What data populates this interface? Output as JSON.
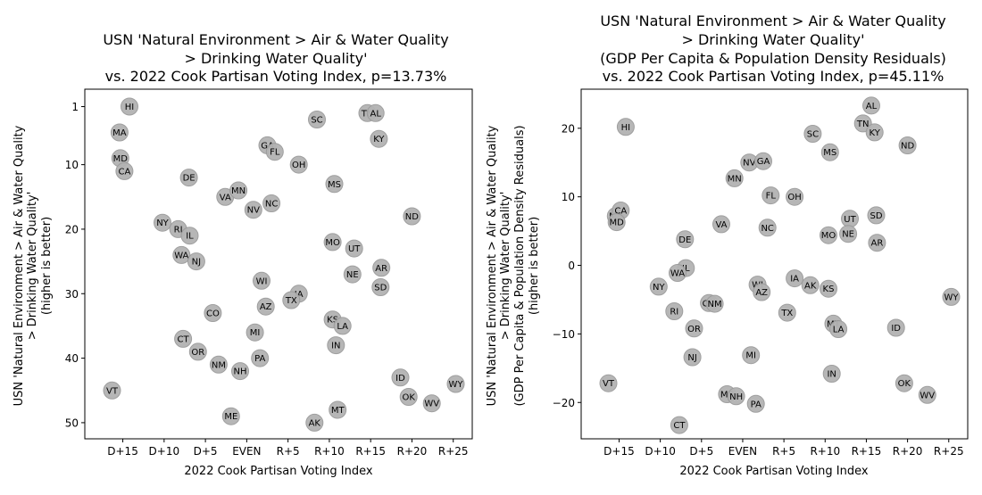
{
  "chart_data": [
    {
      "type": "scatter",
      "title_lines": [
        "USN 'Natural Environment > Air & Water Quality",
        "> Drinking Water Quality'",
        "vs. 2022 Cook Partisan Voting Index, p=13.73%"
      ],
      "xlabel": "2022 Cook Partisan Voting Index",
      "ylabel_lines": [
        "USN 'Natural Environment > Air & Water Quality",
        "> Drinking Water Quality'",
        "(higher is better)"
      ],
      "xlim": [
        -19.6,
        27.3
      ],
      "ylim": [
        52.5,
        -1.7
      ],
      "y_inverted": true,
      "xticks": [
        {
          "v": -15,
          "label": "D+15"
        },
        {
          "v": -10,
          "label": "D+10"
        },
        {
          "v": -5,
          "label": "D+5"
        },
        {
          "v": 0,
          "label": "EVEN"
        },
        {
          "v": 5,
          "label": "R+5"
        },
        {
          "v": 10,
          "label": "R+10"
        },
        {
          "v": 15,
          "label": "R+15"
        },
        {
          "v": 20,
          "label": "R+20"
        },
        {
          "v": 25,
          "label": "R+25"
        }
      ],
      "yticks": [
        {
          "v": 1,
          "label": "1"
        },
        {
          "v": 10,
          "label": "10"
        },
        {
          "v": 20,
          "label": "20"
        },
        {
          "v": 30,
          "label": "30"
        },
        {
          "v": 40,
          "label": "40"
        },
        {
          "v": 50,
          "label": "50"
        }
      ],
      "points": [
        {
          "label": "HI",
          "x": -14.2,
          "y": 1
        },
        {
          "label": "MA",
          "x": -15.4,
          "y": 5
        },
        {
          "label": "MD",
          "x": -15.3,
          "y": 9
        },
        {
          "label": "CA",
          "x": -14.8,
          "y": 11
        },
        {
          "label": "DE",
          "x": -7.0,
          "y": 12
        },
        {
          "label": "VA",
          "x": -2.6,
          "y": 15
        },
        {
          "label": "MN",
          "x": -1.0,
          "y": 14
        },
        {
          "label": "NV",
          "x": 0.8,
          "y": 17
        },
        {
          "label": "NC",
          "x": 3.0,
          "y": 16
        },
        {
          "label": "NY",
          "x": -10.2,
          "y": 19
        },
        {
          "label": "RI",
          "x": -8.3,
          "y": 20
        },
        {
          "label": "IL",
          "x": -6.9,
          "y": 21
        },
        {
          "label": "WA",
          "x": -7.9,
          "y": 24
        },
        {
          "label": "NJ",
          "x": -6.1,
          "y": 25
        },
        {
          "label": "GA",
          "x": 2.5,
          "y": 7
        },
        {
          "label": "FL",
          "x": 3.4,
          "y": 8
        },
        {
          "label": "OH",
          "x": 6.3,
          "y": 10
        },
        {
          "label": "SC",
          "x": 8.5,
          "y": 3
        },
        {
          "label": "MS",
          "x": 10.6,
          "y": 13
        },
        {
          "label": "TN",
          "x": 14.6,
          "y": 2
        },
        {
          "label": "AL",
          "x": 15.6,
          "y": 2
        },
        {
          "label": "KY",
          "x": 16.0,
          "y": 6
        },
        {
          "label": "ND",
          "x": 20.0,
          "y": 18
        },
        {
          "label": "MO",
          "x": 10.4,
          "y": 22
        },
        {
          "label": "UT",
          "x": 13.0,
          "y": 23
        },
        {
          "label": "AR",
          "x": 16.3,
          "y": 26
        },
        {
          "label": "NE",
          "x": 12.8,
          "y": 27
        },
        {
          "label": "SD",
          "x": 16.2,
          "y": 29
        },
        {
          "label": "WI",
          "x": 1.8,
          "y": 28
        },
        {
          "label": "IA",
          "x": 6.3,
          "y": 30
        },
        {
          "label": "TX",
          "x": 5.4,
          "y": 31
        },
        {
          "label": "AZ",
          "x": 2.3,
          "y": 32
        },
        {
          "label": "CO",
          "x": -4.1,
          "y": 33
        },
        {
          "label": "KS",
          "x": 10.4,
          "y": 34
        },
        {
          "label": "LA",
          "x": 11.6,
          "y": 35
        },
        {
          "label": "MI",
          "x": 1.0,
          "y": 36
        },
        {
          "label": "CT",
          "x": -7.7,
          "y": 37
        },
        {
          "label": "IN",
          "x": 10.8,
          "y": 38
        },
        {
          "label": "OR",
          "x": -5.9,
          "y": 39
        },
        {
          "label": "PA",
          "x": 1.6,
          "y": 40
        },
        {
          "label": "NM",
          "x": -3.4,
          "y": 41
        },
        {
          "label": "NH",
          "x": -0.8,
          "y": 42
        },
        {
          "label": "ID",
          "x": 18.6,
          "y": 43
        },
        {
          "label": "VT",
          "x": -16.3,
          "y": 45
        },
        {
          "label": "WY",
          "x": 25.3,
          "y": 44
        },
        {
          "label": "OK",
          "x": 19.6,
          "y": 46
        },
        {
          "label": "WV",
          "x": 22.4,
          "y": 47
        },
        {
          "label": "MT",
          "x": 11.0,
          "y": 48
        },
        {
          "label": "ME",
          "x": -1.9,
          "y": 49
        },
        {
          "label": "AK",
          "x": 8.2,
          "y": 50
        }
      ]
    },
    {
      "type": "scatter",
      "title_lines": [
        "USN 'Natural Environment > Air & Water Quality",
        "> Drinking Water Quality'",
        "(GDP Per Capita & Population Density Residuals)",
        "vs. 2022 Cook Partisan Voting Index, p=45.11%"
      ],
      "xlabel": "2022 Cook Partisan Voting Index",
      "ylabel_lines": [
        "USN 'Natural Environment > Air & Water Quality",
        "> Drinking Water Quality'",
        "(GDP Per Capita & Population Density Residuals)",
        "(higher is better)"
      ],
      "xlim": [
        -19.6,
        27.3
      ],
      "ylim": [
        -25.3,
        25.7
      ],
      "y_inverted": false,
      "xticks": [
        {
          "v": -15,
          "label": "D+15"
        },
        {
          "v": -10,
          "label": "D+10"
        },
        {
          "v": -5,
          "label": "D+5"
        },
        {
          "v": 0,
          "label": "EVEN"
        },
        {
          "v": 5,
          "label": "R+5"
        },
        {
          "v": 10,
          "label": "R+10"
        },
        {
          "v": 15,
          "label": "R+15"
        },
        {
          "v": 20,
          "label": "R+20"
        },
        {
          "v": 25,
          "label": "R+25"
        }
      ],
      "yticks": [
        {
          "v": -20,
          "label": "−20"
        },
        {
          "v": -10,
          "label": "−10"
        },
        {
          "v": 0,
          "label": "0"
        },
        {
          "v": 10,
          "label": "10"
        },
        {
          "v": 20,
          "label": "20"
        }
      ],
      "points": [
        {
          "label": "HI",
          "x": -14.2,
          "y": 20.2
        },
        {
          "label": "AL",
          "x": 15.6,
          "y": 23.3
        },
        {
          "label": "TN",
          "x": 14.6,
          "y": 20.7
        },
        {
          "label": "KY",
          "x": 16.0,
          "y": 19.4
        },
        {
          "label": "SC",
          "x": 8.5,
          "y": 19.2
        },
        {
          "label": "ND",
          "x": 20.0,
          "y": 17.5
        },
        {
          "label": "MS",
          "x": 10.6,
          "y": 16.5
        },
        {
          "label": "NV",
          "x": 0.8,
          "y": 15.0
        },
        {
          "label": "GA",
          "x": 2.5,
          "y": 15.2
        },
        {
          "label": "MN",
          "x": -1.0,
          "y": 12.7
        },
        {
          "label": "FL",
          "x": 3.4,
          "y": 10.2
        },
        {
          "label": "OH",
          "x": 6.3,
          "y": 10.0
        },
        {
          "label": "MA",
          "x": -15.4,
          "y": 7.2
        },
        {
          "label": "CA",
          "x": -14.8,
          "y": 8.0
        },
        {
          "label": "MD",
          "x": -15.3,
          "y": 6.3
        },
        {
          "label": "VA",
          "x": -2.6,
          "y": 6.0
        },
        {
          "label": "NC",
          "x": 3.0,
          "y": 5.5
        },
        {
          "label": "UT",
          "x": 13.0,
          "y": 6.8
        },
        {
          "label": "SD",
          "x": 16.2,
          "y": 7.3
        },
        {
          "label": "MO",
          "x": 10.4,
          "y": 4.4
        },
        {
          "label": "NE",
          "x": 12.8,
          "y": 4.6
        },
        {
          "label": "DE",
          "x": -7.0,
          "y": 3.8
        },
        {
          "label": "AR",
          "x": 16.3,
          "y": 3.3
        },
        {
          "label": "IL",
          "x": -6.9,
          "y": -0.4
        },
        {
          "label": "WA",
          "x": -7.9,
          "y": -1.1
        },
        {
          "label": "NY",
          "x": -10.2,
          "y": -3.1
        },
        {
          "label": "IA",
          "x": 6.3,
          "y": -1.9
        },
        {
          "label": "AK",
          "x": 8.2,
          "y": -2.9
        },
        {
          "label": "WI",
          "x": 1.8,
          "y": -2.8
        },
        {
          "label": "KS",
          "x": 10.4,
          "y": -3.4
        },
        {
          "label": "AZ",
          "x": 2.3,
          "y": -3.9
        },
        {
          "label": "WY",
          "x": 25.3,
          "y": -4.6
        },
        {
          "label": "CO",
          "x": -4.1,
          "y": -5.5
        },
        {
          "label": "NM",
          "x": -3.4,
          "y": -5.6
        },
        {
          "label": "RI",
          "x": -8.3,
          "y": -6.7
        },
        {
          "label": "TX",
          "x": 5.4,
          "y": -6.9
        },
        {
          "label": "MT",
          "x": 11.0,
          "y": -8.5
        },
        {
          "label": "LA",
          "x": 11.6,
          "y": -9.3
        },
        {
          "label": "OR",
          "x": -5.9,
          "y": -9.2
        },
        {
          "label": "ID",
          "x": 18.6,
          "y": -9.1
        },
        {
          "label": "MI",
          "x": 1.0,
          "y": -13.1
        },
        {
          "label": "NJ",
          "x": -6.1,
          "y": -13.4
        },
        {
          "label": "IN",
          "x": 10.8,
          "y": -15.8
        },
        {
          "label": "VT",
          "x": -16.3,
          "y": -17.2
        },
        {
          "label": "OK",
          "x": 19.6,
          "y": -17.2
        },
        {
          "label": "ME",
          "x": -1.9,
          "y": -18.8
        },
        {
          "label": "NH",
          "x": -0.8,
          "y": -19.1
        },
        {
          "label": "WV",
          "x": 22.4,
          "y": -18.9
        },
        {
          "label": "PA",
          "x": 1.6,
          "y": -20.2
        },
        {
          "label": "CT",
          "x": -7.7,
          "y": -23.3
        }
      ]
    }
  ]
}
